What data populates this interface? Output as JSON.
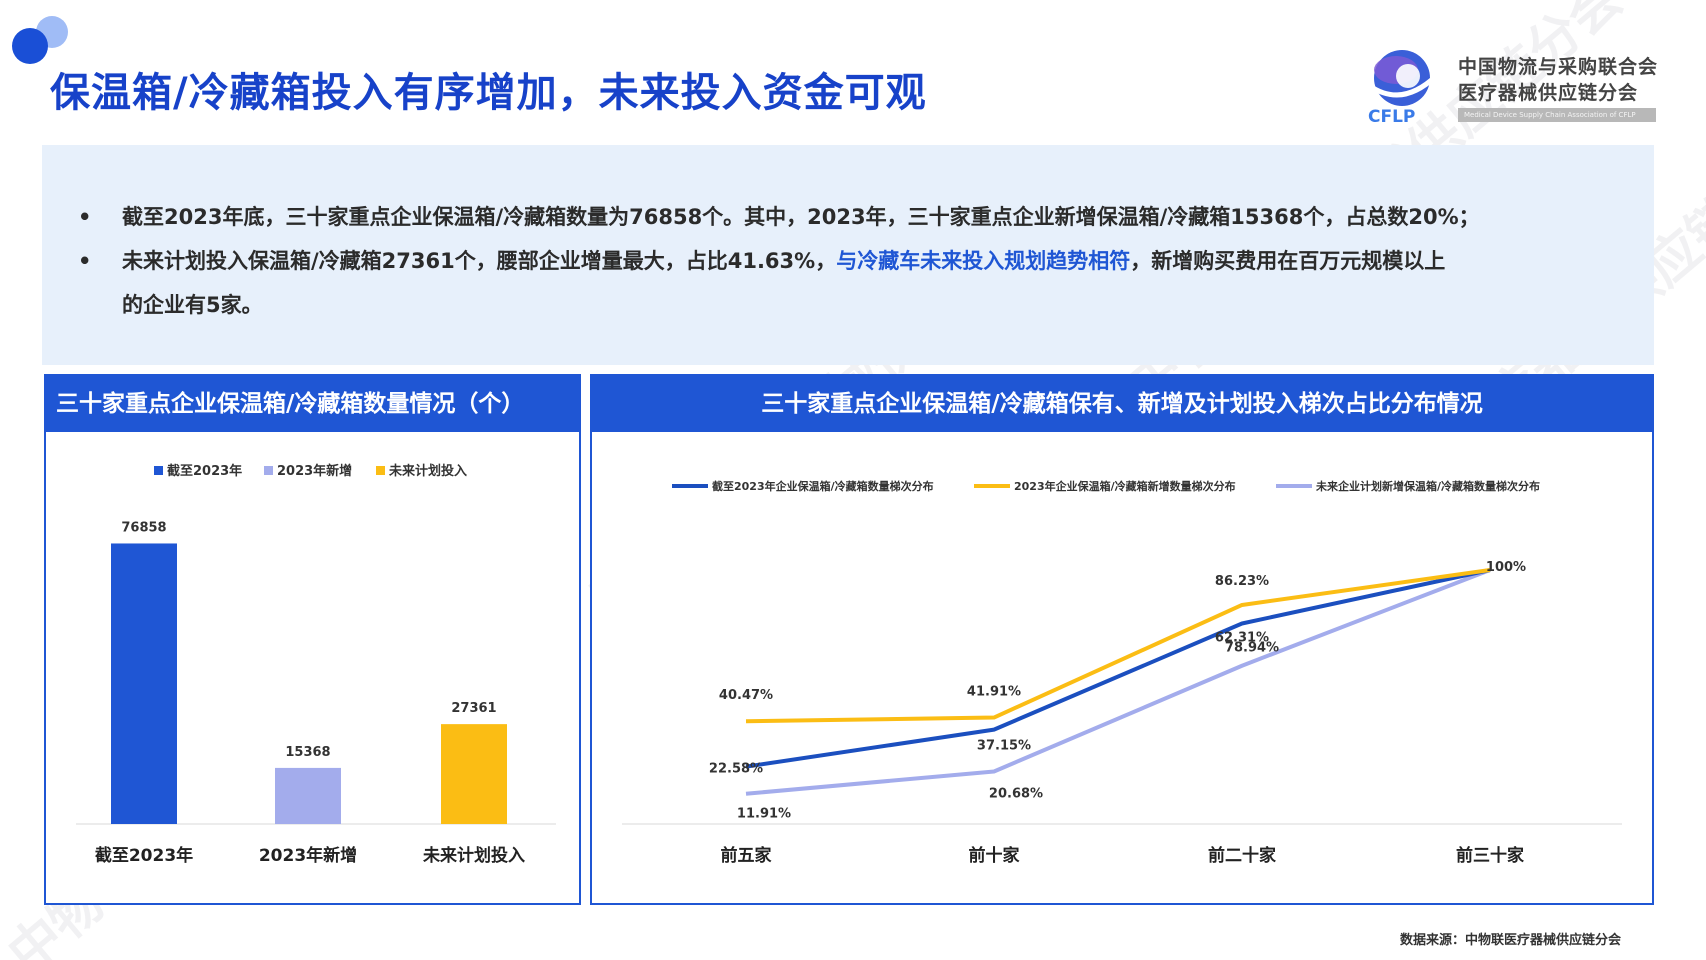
{
  "page": {
    "title": "保温箱/冷藏箱投入有序增加，未来投入资金可观",
    "source": "数据来源：中物联医疗器械供应链分会",
    "watermark": "中物联医疗器械供应链分会"
  },
  "logo": {
    "abbr": "CFLP",
    "name_line1": "中国物流与采购联合会",
    "name_line2": "医疗器械供应链分会",
    "english": "Medical Device Supply Chain Association of CFLP"
  },
  "summary": {
    "bullet_char": "•",
    "line1": "截至2023年底，三十家重点企业保温箱/冷藏箱数量为76858个。其中，2023年，三十家重点企业新增保温箱/冷藏箱15368个，占总数20%；",
    "line2_pre": "未来计划投入保温箱/冷藏箱27361个，腰部企业增量最大，占比41.63%，",
    "line2_hl": "与冷藏车未来投入规划趋势相符",
    "line2_post": "，新增购买费用在百万元规模以上",
    "line3": "的企业有5家。"
  },
  "colors": {
    "blue": "#1f56d4",
    "lavender": "#a3acec",
    "yellow": "#fbbd14",
    "dark_blue_line": "#1b4fbf"
  },
  "left_panel": {
    "title": "三十家重点企业保温箱/冷藏箱数量情况（个）"
  },
  "right_panel": {
    "title": "三十家重点企业保温箱/冷藏箱保有、新增及计划投入梯次占比分布情况"
  },
  "chart_data": [
    {
      "type": "bar",
      "categories": [
        "截至2023年",
        "2023年新增",
        "未来计划投入"
      ],
      "values": [
        76858,
        15368,
        27361
      ],
      "legend": [
        "截至2023年",
        "2023年新增",
        "未来计划投入"
      ],
      "colors": [
        "#1f56d4",
        "#a3acec",
        "#fbbd14"
      ],
      "ylim": [
        0,
        80000
      ],
      "grid": false,
      "legend_position": "top"
    },
    {
      "type": "line",
      "categories": [
        "前五家",
        "前十家",
        "前二十家",
        "前三十家"
      ],
      "series": [
        {
          "name": "截至2023年企业保温箱/冷藏箱数量梯次分布",
          "values": [
            22.58,
            37.15,
            78.94,
            100
          ],
          "labels": [
            "22.58%",
            "37.15%",
            "78.94%",
            "100%"
          ],
          "color": "#1b4fbf"
        },
        {
          "name": "2023年企业保温箱/冷藏箱新增数量梯次分布",
          "values": [
            40.47,
            41.91,
            86.23,
            100
          ],
          "labels": [
            "40.47%",
            "41.91%",
            "86.23%",
            ""
          ],
          "color": "#fbbd14"
        },
        {
          "name": "未来企业计划新增保温箱/冷藏箱数量梯次分布",
          "values": [
            11.91,
            20.68,
            62.31,
            100
          ],
          "labels": [
            "11.91%",
            "20.68%",
            "62.31%",
            ""
          ],
          "color": "#a3acec"
        }
      ],
      "ylim": [
        0,
        100
      ],
      "grid": false,
      "legend_position": "top"
    }
  ]
}
